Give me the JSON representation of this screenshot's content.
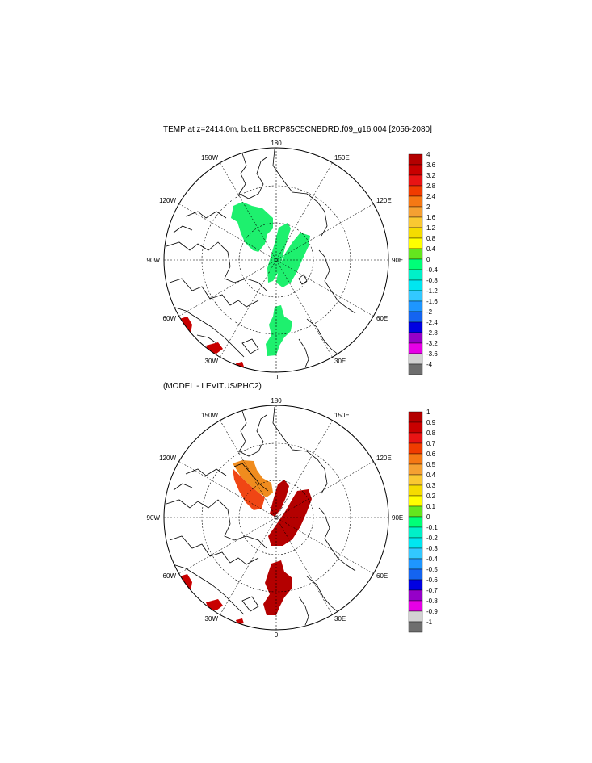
{
  "panel1": {
    "title": "TEMP at z=2414.0m, b.e11.BRCP85C5CNBDRD.f09_g16.004 [2056-2080]",
    "longitude_labels": [
      "180",
      "150E",
      "120E",
      "90E",
      "60E",
      "30E",
      "0",
      "30W",
      "60W",
      "90W",
      "120W",
      "150W"
    ],
    "colorbar": {
      "labels": [
        "4",
        "3.6",
        "3.2",
        "2.8",
        "2.4",
        "2",
        "1.6",
        "1.2",
        "0.8",
        "0.4",
        "0",
        "-0.4",
        "-0.8",
        "-1.2",
        "-1.6",
        "-2",
        "-2.4",
        "-2.8",
        "-3.2",
        "-3.6",
        "-4"
      ],
      "colors": [
        "#b40000",
        "#c80000",
        "#e81414",
        "#f03c00",
        "#f57814",
        "#f5a032",
        "#fac832",
        "#f5dc00",
        "#ffff00",
        "#64e61e",
        "#00ff78",
        "#00f0c8",
        "#00e6f0",
        "#32c8ff",
        "#1e96ff",
        "#1464f0",
        "#0000e1",
        "#9600c8",
        "#e600e6",
        "#d2d2d2",
        "#6e6e6e"
      ]
    }
  },
  "panel2": {
    "title": "(MODEL - LEVITUS/PHC2)",
    "longitude_labels": [
      "180",
      "150E",
      "120E",
      "90E",
      "60E",
      "30E",
      "0",
      "30W",
      "60W",
      "90W",
      "120W",
      "150W"
    ],
    "colorbar": {
      "labels": [
        "1",
        "0.9",
        "0.8",
        "0.7",
        "0.6",
        "0.5",
        "0.4",
        "0.3",
        "0.2",
        "0.1",
        "0",
        "-0.1",
        "-0.2",
        "-0.3",
        "-0.4",
        "-0.5",
        "-0.6",
        "-0.7",
        "-0.8",
        "-0.9",
        "-1"
      ],
      "colors": [
        "#b40000",
        "#c80000",
        "#e81414",
        "#f03c00",
        "#f57814",
        "#f5a032",
        "#fac832",
        "#f5dc00",
        "#ffff00",
        "#64e61e",
        "#00ff78",
        "#00f0c8",
        "#00e6f0",
        "#32c8ff",
        "#1e96ff",
        "#1464f0",
        "#0000e1",
        "#9600c8",
        "#e600e6",
        "#d2d2d2",
        "#6e6e6e"
      ]
    }
  },
  "colors": {
    "field_positive_small": "#1ef06e",
    "field_dark_red": "#b40000",
    "field_red_orange": "#f04614",
    "field_orange": "#f08c1e",
    "land_outline": "#000000",
    "grid": "#000000"
  }
}
